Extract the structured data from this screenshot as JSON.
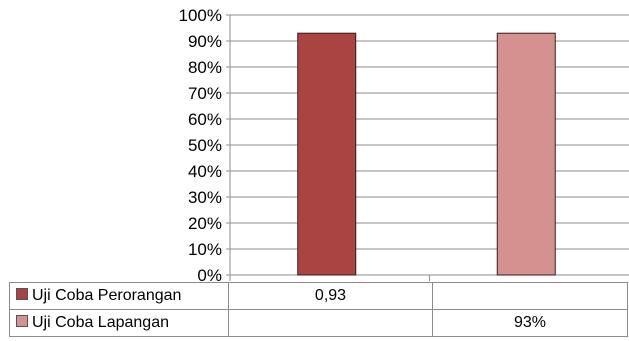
{
  "chart_data": {
    "type": "bar",
    "categories": [
      "Uji Coba Perorangan",
      "Uji Coba Lapangan"
    ],
    "series": [
      {
        "name": "Uji Coba Perorangan",
        "values": [
          0.93,
          null
        ],
        "color": "#a94442",
        "table_labels": [
          "0,93",
          ""
        ]
      },
      {
        "name": "Uji Coba Lapangan",
        "values": [
          null,
          0.93
        ],
        "color": "#d49190",
        "table_labels": [
          "",
          "93%"
        ]
      }
    ],
    "y_ticks": [
      "0%",
      "10%",
      "20%",
      "30%",
      "40%",
      "50%",
      "60%",
      "70%",
      "80%",
      "90%",
      "100%"
    ],
    "ylim": [
      0,
      1
    ],
    "grid": true,
    "legend": "data-table"
  }
}
